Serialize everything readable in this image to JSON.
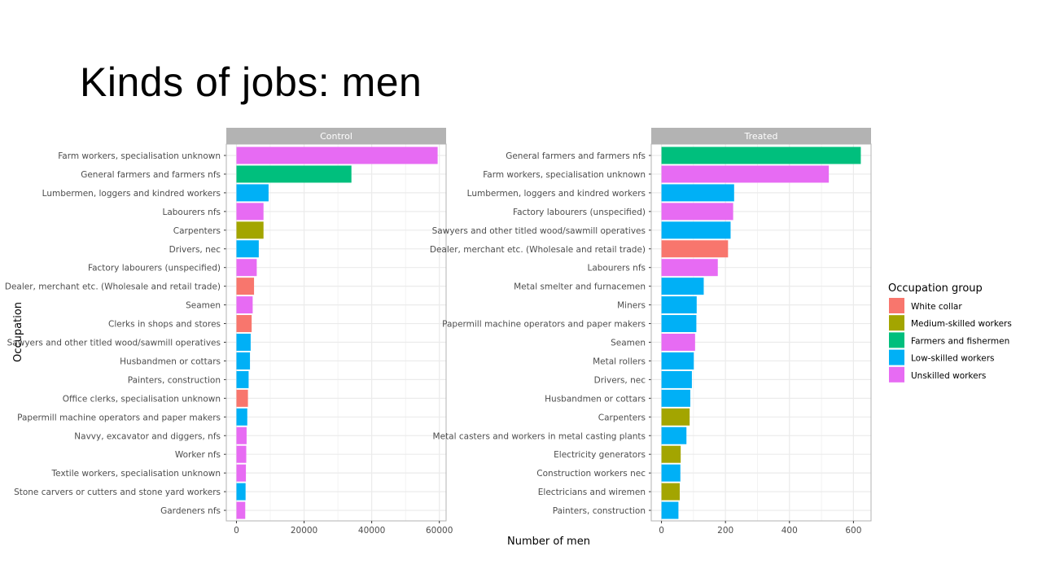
{
  "slide": {
    "title": "Kinds of jobs: men"
  },
  "colors": {
    "White collar": "#F8766D",
    "Medium-skilled workers": "#A3A500",
    "Farmers and fishermen": "#00BF7D",
    "Low-skilled workers": "#00B0F6",
    "Unskilled workers": "#E76BF3",
    "strip": "#b3b3b3",
    "grid": "#ebebeb",
    "panel_border": "#b3b3b3"
  },
  "chart_data": {
    "type": "bar",
    "orientation": "horizontal",
    "xlabel": "Number of men",
    "ylabel": "Occupation",
    "grid": true,
    "legend": {
      "title": "Occupation group",
      "placement": "right",
      "items": [
        "White collar",
        "Medium-skilled workers",
        "Farmers and fishermen",
        "Low-skilled workers",
        "Unskilled workers"
      ]
    },
    "panels": [
      {
        "strip": "Control",
        "xlim": [
          -3000,
          62000
        ],
        "xticks": [
          0,
          20000,
          40000,
          60000
        ],
        "bars": [
          {
            "category": "Farm workers, specialisation unknown",
            "value": 59500,
            "group": "Unskilled workers"
          },
          {
            "category": "General farmers and farmers nfs",
            "value": 34000,
            "group": "Farmers and fishermen"
          },
          {
            "category": "Lumbermen, loggers and kindred workers",
            "value": 9500,
            "group": "Low-skilled workers"
          },
          {
            "category": "Labourers nfs",
            "value": 8000,
            "group": "Unskilled workers"
          },
          {
            "category": "Carpenters",
            "value": 8000,
            "group": "Medium-skilled workers"
          },
          {
            "category": "Drivers, nec",
            "value": 6600,
            "group": "Low-skilled workers"
          },
          {
            "category": "Factory labourers (unspecified)",
            "value": 6000,
            "group": "Unskilled workers"
          },
          {
            "category": "Dealer, merchant etc. (Wholesale and retail trade)",
            "value": 5200,
            "group": "White collar"
          },
          {
            "category": "Seamen",
            "value": 4800,
            "group": "Unskilled workers"
          },
          {
            "category": "Clerks in shops and stores",
            "value": 4500,
            "group": "White collar"
          },
          {
            "category": "Sawyers and other titled wood/sawmill operatives",
            "value": 4200,
            "group": "Low-skilled workers"
          },
          {
            "category": "Husbandmen or cottars",
            "value": 4000,
            "group": "Low-skilled workers"
          },
          {
            "category": "Painters, construction",
            "value": 3600,
            "group": "Low-skilled workers"
          },
          {
            "category": "Office clerks, specialisation unknown",
            "value": 3400,
            "group": "White collar"
          },
          {
            "category": "Papermill machine operators and paper makers",
            "value": 3200,
            "group": "Low-skilled workers"
          },
          {
            "category": "Navvy, excavator and diggers, nfs",
            "value": 3000,
            "group": "Unskilled workers"
          },
          {
            "category": "Worker nfs",
            "value": 2900,
            "group": "Unskilled workers"
          },
          {
            "category": "Textile workers, specialisation unknown",
            "value": 2800,
            "group": "Unskilled workers"
          },
          {
            "category": "Stone carvers or cutters and stone yard workers",
            "value": 2700,
            "group": "Low-skilled workers"
          },
          {
            "category": "Gardeners nfs",
            "value": 2600,
            "group": "Unskilled workers"
          }
        ]
      },
      {
        "strip": "Treated",
        "xlim": [
          -32,
          655
        ],
        "xticks": [
          0,
          200,
          400,
          600
        ],
        "bars": [
          {
            "category": "General farmers and farmers nfs",
            "value": 623,
            "group": "Farmers and fishermen"
          },
          {
            "category": "Farm workers, specialisation unknown",
            "value": 523,
            "group": "Unskilled workers"
          },
          {
            "category": "Lumbermen, loggers and kindred workers",
            "value": 227,
            "group": "Low-skilled workers"
          },
          {
            "category": "Factory labourers (unspecified)",
            "value": 224,
            "group": "Unskilled workers"
          },
          {
            "category": "Sawyers and other titled wood/sawmill operatives",
            "value": 216,
            "group": "Low-skilled workers"
          },
          {
            "category": "Dealer, merchant etc. (Wholesale and retail trade)",
            "value": 208,
            "group": "White collar"
          },
          {
            "category": "Labourers nfs",
            "value": 176,
            "group": "Unskilled workers"
          },
          {
            "category": "Metal smelter and furnacemen",
            "value": 132,
            "group": "Low-skilled workers"
          },
          {
            "category": "Miners",
            "value": 110,
            "group": "Low-skilled workers"
          },
          {
            "category": "Papermill machine operators and paper makers",
            "value": 109,
            "group": "Low-skilled workers"
          },
          {
            "category": "Seamen",
            "value": 105,
            "group": "Unskilled workers"
          },
          {
            "category": "Metal rollers",
            "value": 101,
            "group": "Low-skilled workers"
          },
          {
            "category": "Drivers, nec",
            "value": 95,
            "group": "Low-skilled workers"
          },
          {
            "category": "Husbandmen or cottars",
            "value": 90,
            "group": "Low-skilled workers"
          },
          {
            "category": "Carpenters",
            "value": 88,
            "group": "Medium-skilled workers"
          },
          {
            "category": "Metal casters and workers in metal casting plants",
            "value": 78,
            "group": "Low-skilled workers"
          },
          {
            "category": "Electricity generators",
            "value": 60,
            "group": "Medium-skilled workers"
          },
          {
            "category": "Construction workers nec",
            "value": 59,
            "group": "Low-skilled workers"
          },
          {
            "category": "Electricians and wiremen",
            "value": 57,
            "group": "Medium-skilled workers"
          },
          {
            "category": "Painters, construction",
            "value": 53,
            "group": "Low-skilled workers"
          }
        ]
      }
    ]
  }
}
